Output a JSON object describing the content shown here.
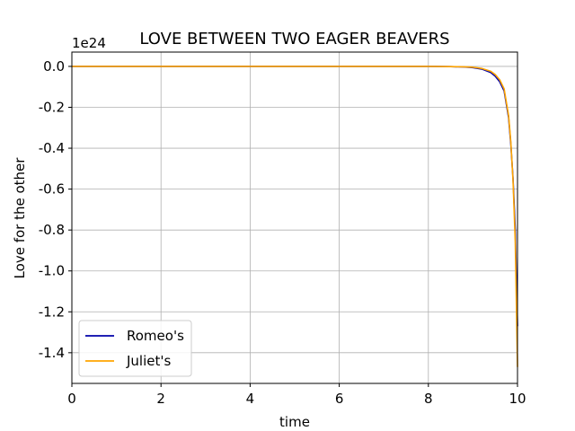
{
  "chart_data": {
    "type": "line",
    "title": "LOVE BETWEEN TWO EAGER BEAVERS",
    "xlabel": "time",
    "ylabel": "Love for the other",
    "y_offset_label": "1e24",
    "xlim": [
      0,
      10
    ],
    "ylim": [
      -1.55,
      0.07
    ],
    "x_ticks": [
      0,
      2,
      4,
      6,
      8,
      10
    ],
    "x_tick_labels": [
      "0",
      "2",
      "4",
      "6",
      "8",
      "10"
    ],
    "y_ticks": [
      0.0,
      -0.2,
      -0.4,
      -0.6,
      -0.8,
      -1.0,
      -1.2,
      -1.4
    ],
    "y_tick_labels": [
      "0.0",
      "-0.2",
      "-0.4",
      "-0.6",
      "-0.8",
      "-1.0",
      "-1.2",
      "-1.4"
    ],
    "grid": true,
    "legend_position": "bottom-left",
    "x": [
      0,
      1,
      2,
      3,
      4,
      5,
      6,
      7,
      8,
      8.5,
      8.8,
      9.0,
      9.2,
      9.4,
      9.5,
      9.6,
      9.7,
      9.8,
      9.85,
      9.9,
      9.95,
      10.0
    ],
    "series": [
      {
        "name": "Romeo's",
        "color": "#0000aa",
        "values": [
          0,
          0,
          0,
          0,
          0,
          0,
          0,
          0,
          0,
          -0.001,
          -0.003,
          -0.006,
          -0.013,
          -0.03,
          -0.048,
          -0.075,
          -0.12,
          -0.25,
          -0.38,
          -0.55,
          -0.8,
          -1.27
        ]
      },
      {
        "name": "Juliet's",
        "color": "#ffa500",
        "values": [
          0,
          0,
          0,
          0,
          0,
          0,
          0,
          0,
          0,
          -0.001,
          -0.002,
          -0.004,
          -0.01,
          -0.024,
          -0.04,
          -0.065,
          -0.11,
          -0.24,
          -0.37,
          -0.56,
          -0.86,
          -1.47
        ]
      }
    ]
  }
}
